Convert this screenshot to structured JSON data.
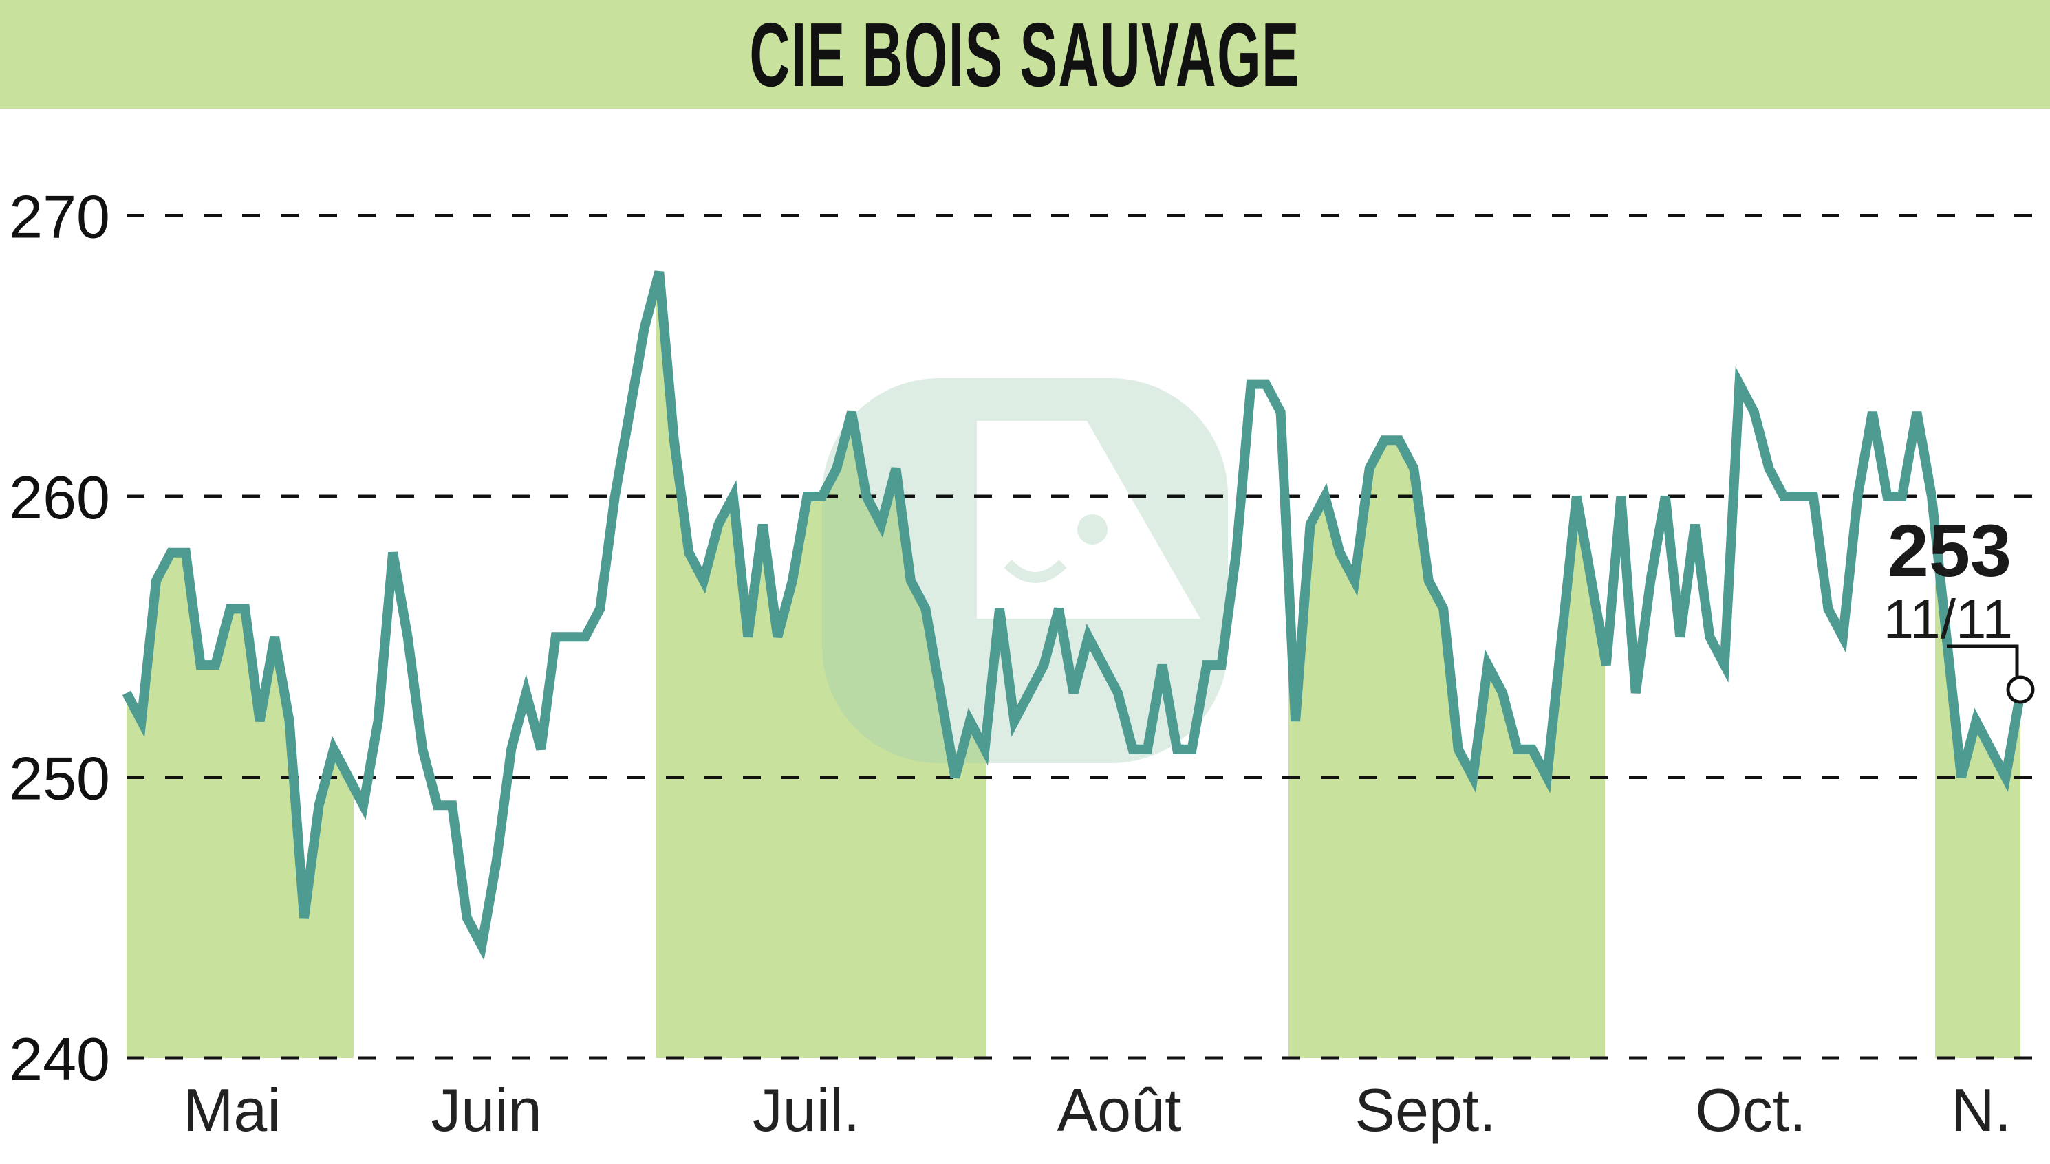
{
  "title": "CIE BOIS SAUVAGE",
  "colors": {
    "title_bg": "#c8e29e",
    "line": "#4e9b91",
    "fill": "#c8e29e",
    "grid": "#111111"
  },
  "last_value": {
    "price": "253",
    "date": "11/11"
  },
  "chart_data": {
    "type": "line",
    "title": "CIE BOIS SAUVAGE",
    "xlabel": "",
    "ylabel": "",
    "ylim": [
      240,
      270
    ],
    "yticks": [
      240,
      250,
      260,
      270
    ],
    "grid": "horizontal dashed",
    "month_labels": [
      "Mai",
      "Juin",
      "Juil.",
      "Août",
      "Sept.",
      "Oct.",
      "N."
    ],
    "shaded_months": [
      "Mai",
      "Juil.",
      "Sept.",
      "N."
    ],
    "series": [
      {
        "name": "CIE BOIS SAUVAGE",
        "values": [
          253,
          252,
          257,
          258,
          258,
          254,
          254,
          256,
          256,
          252,
          255,
          252,
          245,
          249,
          251,
          250,
          249,
          252,
          258,
          255,
          251,
          249,
          249,
          245,
          244,
          247,
          251,
          253,
          251,
          255,
          255,
          255,
          256,
          260,
          263,
          266,
          268,
          262,
          258,
          257,
          259,
          260,
          255,
          259,
          255,
          257,
          260,
          260,
          261,
          263,
          260,
          259,
          261,
          257,
          256,
          253,
          250,
          252,
          251,
          256,
          252,
          253,
          254,
          256,
          253,
          255,
          254,
          253,
          251,
          251,
          254,
          251,
          251,
          254,
          254,
          258,
          264,
          264,
          263,
          252,
          259,
          260,
          258,
          257,
          261,
          262,
          262,
          261,
          257,
          256,
          251,
          250,
          254,
          253,
          251,
          251,
          250,
          255,
          260,
          257,
          254,
          260,
          253,
          257,
          260,
          255,
          259,
          255,
          254,
          264,
          263,
          261,
          260,
          260,
          260,
          256,
          255,
          260,
          263,
          260,
          260,
          263,
          260,
          255,
          250,
          252,
          251,
          250,
          253
        ]
      }
    ],
    "annotation": {
      "value": 253,
      "date": "11/11"
    }
  }
}
